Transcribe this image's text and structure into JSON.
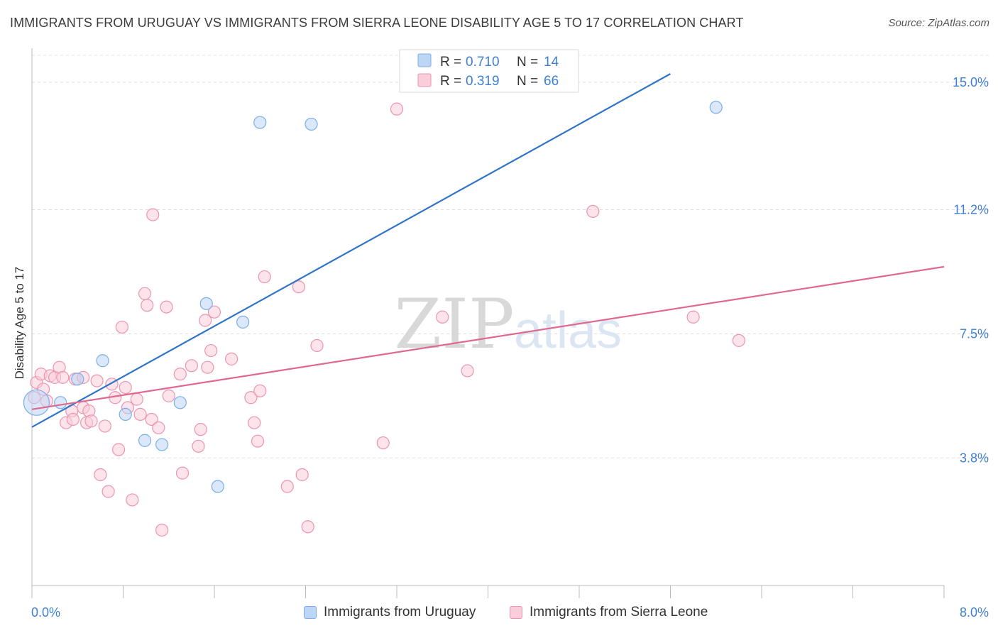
{
  "title": "IMMIGRANTS FROM URUGUAY VS IMMIGRANTS FROM SIERRA LEONE DISABILITY AGE 5 TO 17 CORRELATION CHART",
  "source": "Source: ZipAtlas.com",
  "colors": {
    "blue": "#7aaee8",
    "blue_fill": "#bdd6f5",
    "blue_line": "#2f74c8",
    "pink": "#ec94b0",
    "pink_fill": "#f9cdd9",
    "pink_line": "#e0688f",
    "axis_label": "#3f7fd4"
  },
  "legend": {
    "r_label": "R =",
    "n_label": "N =",
    "entries": [
      {
        "r": "0.710",
        "n": "14"
      },
      {
        "r": "0.319",
        "n": "66"
      }
    ]
  },
  "bottom_legend": {
    "uruguay": "Immigrants from Uruguay",
    "sierra_leone": "Immigrants from Sierra Leone"
  },
  "watermark": {
    "zip": "ZIP",
    "atlas": "atlas"
  },
  "chart_data": {
    "type": "scatter",
    "title": "IMMIGRANTS FROM URUGUAY VS IMMIGRANTS FROM SIERRA LEONE DISABILITY AGE 5 TO 17 CORRELATION CHART",
    "xlabel": "",
    "ylabel": "Disability Age 5 to 17",
    "xlim": [
      0,
      8.0
    ],
    "ylim": [
      0,
      15.8
    ],
    "x_tick_labels": [
      "0.0%",
      "8.0%"
    ],
    "y_ticks": [
      3.8,
      7.5,
      11.2,
      15.0
    ],
    "y_tick_labels": [
      "3.8%",
      "7.5%",
      "11.2%",
      "15.0%"
    ],
    "series": [
      {
        "name": "Immigrants from Uruguay",
        "color": "#7aaee8",
        "r": 0.71,
        "n": 14,
        "trend": {
          "x1": 0.0,
          "y1": 4.72,
          "x2": 5.6,
          "y2": 15.25
        },
        "points": [
          {
            "x": 0.04,
            "y": 5.45,
            "big": true
          },
          {
            "x": 0.25,
            "y": 5.45
          },
          {
            "x": 0.4,
            "y": 6.15
          },
          {
            "x": 0.62,
            "y": 6.7
          },
          {
            "x": 0.82,
            "y": 5.1
          },
          {
            "x": 0.99,
            "y": 4.32
          },
          {
            "x": 1.14,
            "y": 4.2
          },
          {
            "x": 1.3,
            "y": 5.45
          },
          {
            "x": 1.53,
            "y": 8.4
          },
          {
            "x": 1.63,
            "y": 2.95
          },
          {
            "x": 1.85,
            "y": 7.85
          },
          {
            "x": 2.0,
            "y": 13.8
          },
          {
            "x": 2.45,
            "y": 13.75
          },
          {
            "x": 6.0,
            "y": 14.25
          }
        ]
      },
      {
        "name": "Immigrants from Sierra Leone",
        "color": "#ec94b0",
        "r": 0.319,
        "n": 66,
        "trend": {
          "x1": 0.0,
          "y1": 5.25,
          "x2": 8.0,
          "y2": 9.5
        },
        "points": [
          {
            "x": 0.04,
            "y": 6.05
          },
          {
            "x": 0.08,
            "y": 6.3
          },
          {
            "x": 0.1,
            "y": 5.85
          },
          {
            "x": 0.13,
            "y": 5.5
          },
          {
            "x": 0.16,
            "y": 6.25
          },
          {
            "x": 0.2,
            "y": 6.2
          },
          {
            "x": 0.24,
            "y": 6.5
          },
          {
            "x": 0.27,
            "y": 6.2
          },
          {
            "x": 0.3,
            "y": 4.85
          },
          {
            "x": 0.35,
            "y": 5.2
          },
          {
            "x": 0.38,
            "y": 6.15
          },
          {
            "x": 0.45,
            "y": 6.2
          },
          {
            "x": 0.45,
            "y": 5.3
          },
          {
            "x": 0.48,
            "y": 4.85
          },
          {
            "x": 0.5,
            "y": 5.2
          },
          {
            "x": 0.52,
            "y": 4.9
          },
          {
            "x": 0.57,
            "y": 6.1
          },
          {
            "x": 0.6,
            "y": 3.3
          },
          {
            "x": 0.64,
            "y": 4.75
          },
          {
            "x": 0.67,
            "y": 2.8
          },
          {
            "x": 0.7,
            "y": 6.0
          },
          {
            "x": 0.73,
            "y": 5.6
          },
          {
            "x": 0.76,
            "y": 4.05
          },
          {
            "x": 0.79,
            "y": 7.7
          },
          {
            "x": 0.82,
            "y": 5.9
          },
          {
            "x": 0.84,
            "y": 5.3
          },
          {
            "x": 0.88,
            "y": 2.55
          },
          {
            "x": 0.92,
            "y": 5.55
          },
          {
            "x": 0.95,
            "y": 5.1
          },
          {
            "x": 0.99,
            "y": 8.7
          },
          {
            "x": 1.01,
            "y": 8.35
          },
          {
            "x": 1.05,
            "y": 4.95
          },
          {
            "x": 1.06,
            "y": 11.05
          },
          {
            "x": 1.11,
            "y": 4.7
          },
          {
            "x": 1.14,
            "y": 1.65
          },
          {
            "x": 1.18,
            "y": 8.3
          },
          {
            "x": 1.2,
            "y": 5.65
          },
          {
            "x": 1.3,
            "y": 6.3
          },
          {
            "x": 1.32,
            "y": 3.35
          },
          {
            "x": 1.4,
            "y": 6.55
          },
          {
            "x": 1.46,
            "y": 4.15
          },
          {
            "x": 1.48,
            "y": 4.65
          },
          {
            "x": 1.52,
            "y": 7.9
          },
          {
            "x": 1.54,
            "y": 6.5
          },
          {
            "x": 1.57,
            "y": 7.0
          },
          {
            "x": 1.6,
            "y": 8.15
          },
          {
            "x": 1.75,
            "y": 6.75
          },
          {
            "x": 1.92,
            "y": 5.6
          },
          {
            "x": 1.95,
            "y": 4.85
          },
          {
            "x": 1.98,
            "y": 4.3
          },
          {
            "x": 2.0,
            "y": 5.8
          },
          {
            "x": 2.04,
            "y": 9.2
          },
          {
            "x": 2.24,
            "y": 2.95
          },
          {
            "x": 2.34,
            "y": 8.9
          },
          {
            "x": 2.37,
            "y": 3.3
          },
          {
            "x": 2.42,
            "y": 1.75
          },
          {
            "x": 2.5,
            "y": 7.15
          },
          {
            "x": 3.08,
            "y": 4.25
          },
          {
            "x": 3.2,
            "y": 14.2
          },
          {
            "x": 3.6,
            "y": 8.0
          },
          {
            "x": 3.82,
            "y": 6.4
          },
          {
            "x": 4.92,
            "y": 11.15
          },
          {
            "x": 5.8,
            "y": 8.0
          },
          {
            "x": 6.2,
            "y": 7.3
          },
          {
            "x": 0.02,
            "y": 5.6
          },
          {
            "x": 0.36,
            "y": 4.95
          }
        ]
      }
    ]
  }
}
